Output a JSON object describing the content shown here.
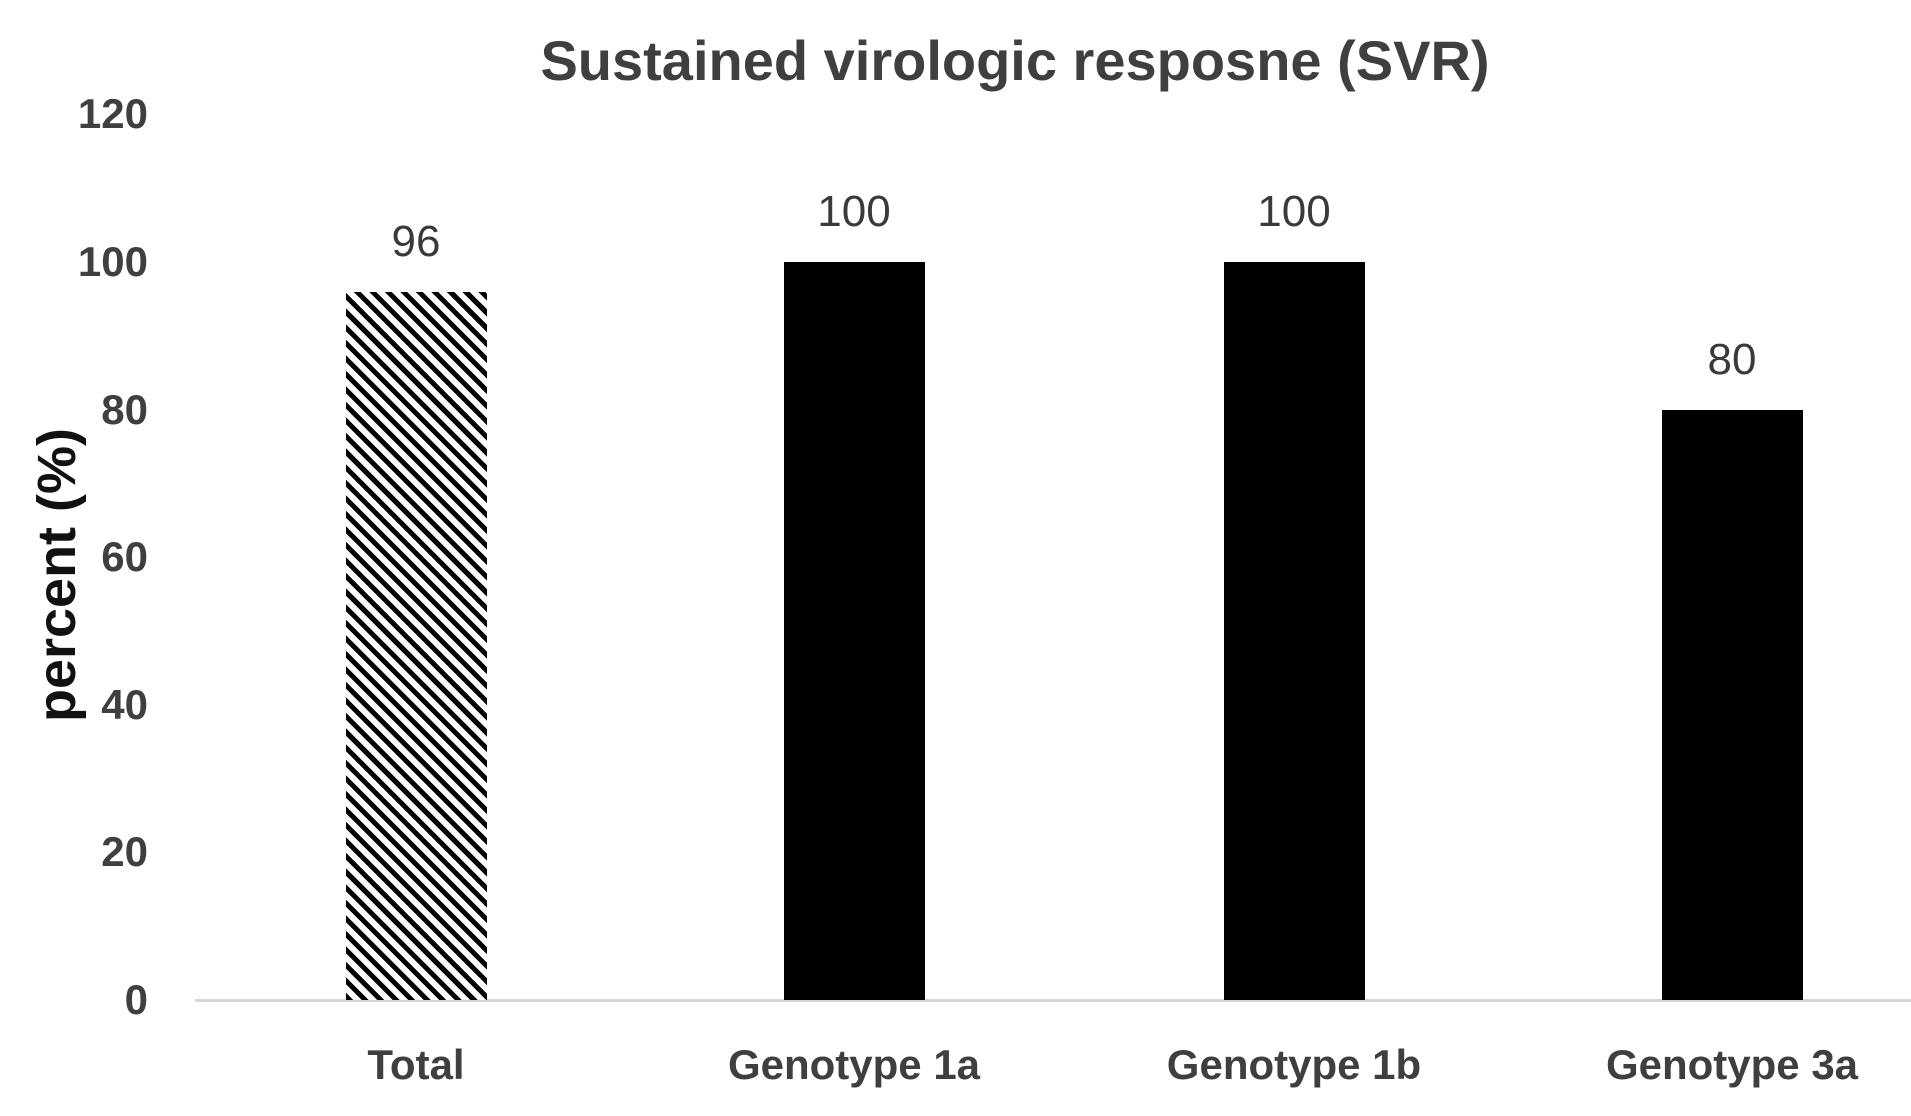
{
  "chart_data": {
    "type": "bar",
    "title": "Sustained virologic resposne (SVR)",
    "xlabel": "",
    "ylabel": "percent (%)",
    "categories": [
      "Total",
      "Genotype 1a",
      "Genotype 1b",
      "Genotype 3a"
    ],
    "values": [
      96,
      100,
      100,
      80
    ],
    "data_labels": [
      "96",
      "100",
      "100",
      "80"
    ],
    "bar_styles": [
      "hatched-diagonal",
      "solid-black",
      "solid-black",
      "solid-black"
    ],
    "ylim": [
      0,
      120
    ],
    "yticks": [
      0,
      20,
      40,
      60,
      80,
      100,
      120
    ],
    "grid": false,
    "legend": false,
    "colors": {
      "bar_fill": "#000000",
      "title_text": "#3f3f3f",
      "tick_text": "#3f3f3f",
      "y_axis_title_text": "#111111",
      "axis_line": "#d6d6d6",
      "background": "#ffffff"
    }
  }
}
